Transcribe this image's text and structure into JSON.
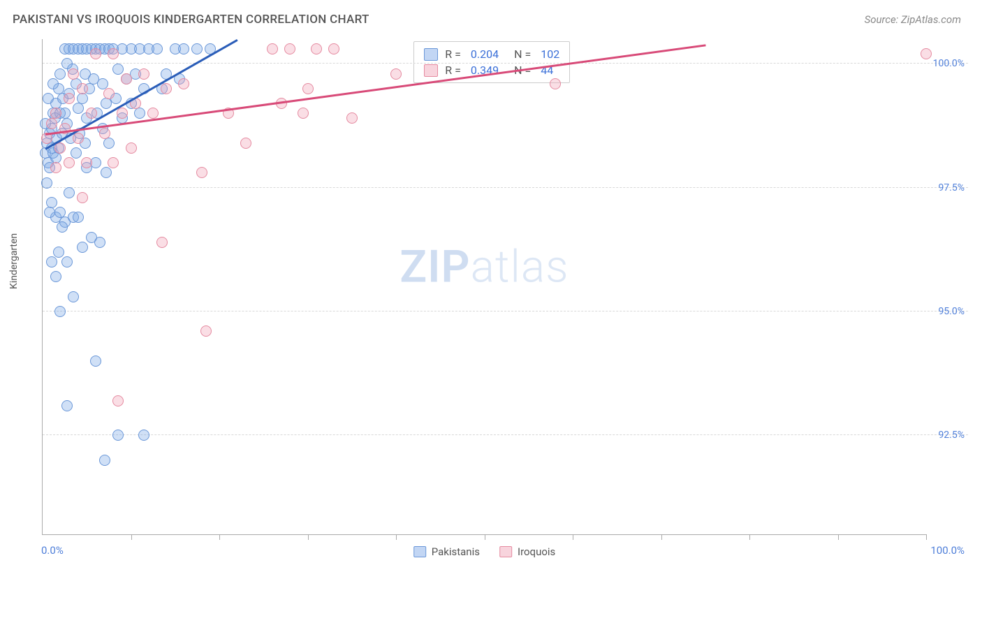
{
  "header": {
    "title": "PAKISTANI VS IROQUOIS KINDERGARTEN CORRELATION CHART",
    "source": "Source: ZipAtlas.com"
  },
  "watermark": {
    "zip": "ZIP",
    "atlas": "atlas"
  },
  "chart": {
    "type": "scatter",
    "xlim": [
      0,
      100
    ],
    "ylim": [
      90.5,
      100.5
    ],
    "x_axis_label_left": "0.0%",
    "x_axis_label_right": "100.0%",
    "y_axis_title": "Kindergarten",
    "y_gridlines": [
      {
        "value": 92.5,
        "label": "92.5%"
      },
      {
        "value": 95.0,
        "label": "95.0%"
      },
      {
        "value": 97.5,
        "label": "97.5%"
      },
      {
        "value": 100.0,
        "label": "100.0%"
      }
    ],
    "x_ticks": [
      10,
      20,
      30,
      40,
      50,
      60,
      70,
      80,
      90,
      100
    ],
    "grid_color": "#d8d8d8",
    "axis_color": "#aaaaaa",
    "marker_radius": 8,
    "series": [
      {
        "name": "Pakistanis",
        "fill_color": "rgba(120,165,230,0.35)",
        "stroke_color": "#6a97d8",
        "trend": {
          "x1": 0.3,
          "y1": 98.3,
          "x2": 22,
          "y2": 100.5,
          "color": "#2a5db8"
        },
        "points": [
          [
            0.3,
            98.2
          ],
          [
            0.5,
            98.4
          ],
          [
            0.6,
            98.0
          ],
          [
            0.8,
            98.6
          ],
          [
            0.8,
            97.9
          ],
          [
            1.0,
            98.3
          ],
          [
            1.0,
            98.7
          ],
          [
            1.2,
            98.2
          ],
          [
            1.2,
            99.0
          ],
          [
            1.4,
            98.9
          ],
          [
            1.5,
            98.1
          ],
          [
            1.5,
            99.2
          ],
          [
            1.6,
            98.5
          ],
          [
            1.8,
            99.5
          ],
          [
            1.8,
            98.3
          ],
          [
            2.0,
            99.0
          ],
          [
            2.0,
            99.8
          ],
          [
            2.2,
            98.6
          ],
          [
            2.3,
            99.3
          ],
          [
            2.5,
            100.3
          ],
          [
            2.5,
            99.0
          ],
          [
            2.8,
            98.8
          ],
          [
            3.0,
            100.3
          ],
          [
            3.0,
            99.4
          ],
          [
            3.2,
            98.5
          ],
          [
            3.4,
            99.9
          ],
          [
            3.5,
            100.3
          ],
          [
            3.8,
            99.6
          ],
          [
            4.0,
            100.3
          ],
          [
            4.0,
            99.1
          ],
          [
            4.2,
            98.6
          ],
          [
            4.5,
            100.3
          ],
          [
            4.5,
            99.3
          ],
          [
            4.8,
            99.8
          ],
          [
            5.0,
            100.3
          ],
          [
            5.0,
            98.9
          ],
          [
            5.3,
            99.5
          ],
          [
            5.5,
            100.3
          ],
          [
            5.8,
            99.7
          ],
          [
            6.0,
            100.3
          ],
          [
            6.2,
            99.0
          ],
          [
            6.5,
            100.3
          ],
          [
            6.8,
            99.6
          ],
          [
            7.0,
            100.3
          ],
          [
            7.2,
            99.2
          ],
          [
            7.5,
            100.3
          ],
          [
            8.0,
            100.3
          ],
          [
            8.5,
            99.9
          ],
          [
            9.0,
            100.3
          ],
          [
            9.5,
            99.7
          ],
          [
            10.0,
            100.3
          ],
          [
            10.5,
            99.8
          ],
          [
            11.0,
            100.3
          ],
          [
            11.5,
            99.5
          ],
          [
            12.0,
            100.3
          ],
          [
            13.0,
            100.3
          ],
          [
            14.0,
            99.8
          ],
          [
            15.0,
            100.3
          ],
          [
            16.0,
            100.3
          ],
          [
            17.5,
            100.3
          ],
          [
            19.0,
            100.3
          ],
          [
            0.5,
            97.6
          ],
          [
            1.0,
            97.2
          ],
          [
            1.5,
            96.9
          ],
          [
            2.0,
            97.0
          ],
          [
            2.5,
            96.8
          ],
          [
            3.0,
            97.4
          ],
          [
            3.5,
            96.9
          ],
          [
            4.0,
            96.9
          ],
          [
            2.2,
            96.7
          ],
          [
            1.0,
            96.0
          ],
          [
            1.8,
            96.2
          ],
          [
            2.8,
            96.0
          ],
          [
            1.5,
            95.7
          ],
          [
            4.5,
            96.3
          ],
          [
            5.5,
            96.5
          ],
          [
            6.5,
            96.4
          ],
          [
            2.0,
            95.0
          ],
          [
            3.5,
            95.3
          ],
          [
            5.0,
            97.9
          ],
          [
            6.0,
            98.0
          ],
          [
            7.5,
            98.4
          ],
          [
            9.0,
            98.9
          ],
          [
            10.0,
            99.2
          ],
          [
            0.8,
            97.0
          ],
          [
            7.2,
            97.8
          ],
          [
            6.0,
            94.0
          ],
          [
            2.8,
            93.1
          ],
          [
            8.5,
            92.5
          ],
          [
            11.5,
            92.5
          ],
          [
            7.0,
            92.0
          ],
          [
            1.2,
            99.6
          ],
          [
            2.8,
            100.0
          ],
          [
            3.8,
            98.2
          ],
          [
            4.8,
            98.4
          ],
          [
            6.8,
            98.7
          ],
          [
            8.3,
            99.3
          ],
          [
            11.0,
            99.0
          ],
          [
            13.5,
            99.5
          ],
          [
            15.5,
            99.7
          ],
          [
            0.3,
            98.8
          ],
          [
            0.6,
            99.3
          ]
        ]
      },
      {
        "name": "Iroquois",
        "fill_color": "rgba(240,160,180,0.35)",
        "stroke_color": "#e58aa0",
        "trend": {
          "x1": 0.3,
          "y1": 98.6,
          "x2": 75,
          "y2": 100.4,
          "color": "#d84a78"
        },
        "points": [
          [
            0.5,
            98.5
          ],
          [
            1.0,
            98.8
          ],
          [
            1.5,
            99.0
          ],
          [
            2.0,
            98.3
          ],
          [
            2.5,
            98.7
          ],
          [
            3.0,
            99.3
          ],
          [
            3.5,
            99.8
          ],
          [
            4.0,
            98.5
          ],
          [
            4.5,
            99.5
          ],
          [
            5.5,
            99.0
          ],
          [
            6.0,
            100.2
          ],
          [
            7.0,
            98.6
          ],
          [
            7.5,
            99.4
          ],
          [
            8.0,
            100.2
          ],
          [
            9.0,
            99.0
          ],
          [
            9.5,
            99.7
          ],
          [
            10.5,
            99.2
          ],
          [
            11.5,
            99.8
          ],
          [
            12.5,
            99.0
          ],
          [
            14.0,
            99.5
          ],
          [
            16.0,
            99.6
          ],
          [
            18.0,
            97.8
          ],
          [
            26.0,
            100.3
          ],
          [
            27.0,
            99.2
          ],
          [
            28.0,
            100.3
          ],
          [
            29.5,
            99.0
          ],
          [
            30.0,
            99.5
          ],
          [
            31.0,
            100.3
          ],
          [
            33.0,
            100.3
          ],
          [
            40.0,
            99.8
          ],
          [
            58.0,
            99.6
          ],
          [
            100.0,
            100.2
          ],
          [
            3.0,
            98.0
          ],
          [
            8.0,
            98.0
          ],
          [
            1.5,
            97.9
          ],
          [
            4.5,
            97.3
          ],
          [
            8.5,
            93.2
          ],
          [
            13.5,
            96.4
          ],
          [
            18.5,
            94.6
          ],
          [
            10.0,
            98.3
          ],
          [
            5.0,
            98.0
          ],
          [
            21.0,
            99.0
          ],
          [
            23.0,
            98.4
          ],
          [
            35.0,
            98.9
          ]
        ]
      }
    ],
    "legend_top": [
      {
        "swatch_fill": "rgba(120,165,230,0.45)",
        "swatch_stroke": "#6a97d8",
        "r_label": "R =",
        "r_value": "0.204",
        "n_label": "N =",
        "n_value": "102"
      },
      {
        "swatch_fill": "rgba(240,160,180,0.45)",
        "swatch_stroke": "#e58aa0",
        "r_label": "R =",
        "r_value": "0.349",
        "n_label": "N =",
        "n_value": " 44"
      }
    ],
    "legend_bottom": [
      {
        "swatch_fill": "rgba(120,165,230,0.45)",
        "swatch_stroke": "#6a97d8",
        "label": "Pakistanis"
      },
      {
        "swatch_fill": "rgba(240,160,180,0.45)",
        "swatch_stroke": "#e58aa0",
        "label": "Iroquois"
      }
    ]
  }
}
